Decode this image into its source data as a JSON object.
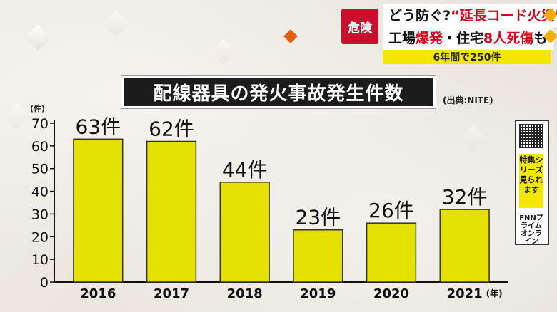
{
  "headline": {
    "badge": "危険",
    "line1_pre": "どう防ぐ?",
    "line1_red": "“延長コード火災”",
    "line2_a": "工場",
    "line2_b": "爆発",
    "line2_c": "・住宅",
    "line2_d": "8人死傷",
    "line2_e": "も",
    "subtitle": "6年間で250件"
  },
  "chart_title": "配線器具の発火事故発生件数",
  "source": "(出典:NITE)",
  "side_panel": {
    "qr_label": "qr-code",
    "text": "特集シリーズ見られます",
    "brand": "FNNプライムオンライン"
  },
  "chart_data": {
    "type": "bar",
    "title": "配線器具の発火事故発生件数",
    "categories": [
      "2016",
      "2017",
      "2018",
      "2019",
      "2020",
      "2021"
    ],
    "values": [
      63,
      62,
      44,
      23,
      26,
      32
    ],
    "value_labels": [
      "63件",
      "62件",
      "44件",
      "23件",
      "26件",
      "32件"
    ],
    "y_unit": "(件)",
    "x_unit": "(年)",
    "yticks": [
      0,
      10,
      20,
      30,
      40,
      50,
      60,
      70
    ],
    "ylim": [
      0,
      70
    ],
    "bar_color": "#e4e000",
    "grid": false
  }
}
